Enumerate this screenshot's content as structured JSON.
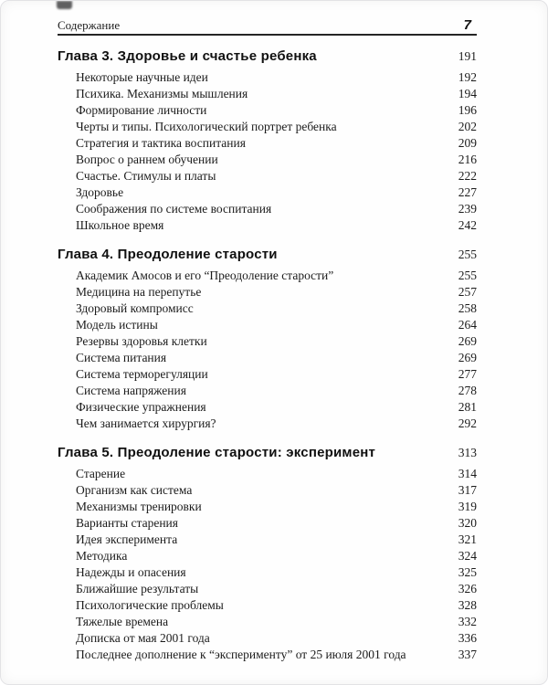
{
  "header": {
    "title": "Содержание",
    "page_number": "7"
  },
  "chapters": [
    {
      "title": "Глава 3. Здоровье и счастье ребенка",
      "page": "191",
      "entries": [
        {
          "title": "Некоторые научные идеи",
          "page": "192"
        },
        {
          "title": "Психика. Механизмы мышления",
          "page": "194"
        },
        {
          "title": "Формирование личности",
          "page": "196"
        },
        {
          "title": "Черты и типы. Психологический портрет ребенка",
          "page": "202"
        },
        {
          "title": "Стратегия и тактика воспитания",
          "page": "209"
        },
        {
          "title": "Вопрос о раннем обучении",
          "page": "216"
        },
        {
          "title": "Счастье. Стимулы и платы",
          "page": "222"
        },
        {
          "title": "Здоровье",
          "page": "227"
        },
        {
          "title": "Соображения по системе воспитания",
          "page": "239"
        },
        {
          "title": "Школьное время",
          "page": "242"
        }
      ]
    },
    {
      "title": "Глава 4. Преодоление старости",
      "page": "255",
      "entries": [
        {
          "title": "Академик Амосов и его “Преодоление старости”",
          "page": "255"
        },
        {
          "title": "Медицина на перепутье",
          "page": "257"
        },
        {
          "title": "Здоровый компромисс",
          "page": "258"
        },
        {
          "title": "Модель истины",
          "page": "264"
        },
        {
          "title": "Резервы здоровья клетки",
          "page": "269"
        },
        {
          "title": "Система питания",
          "page": "269"
        },
        {
          "title": "Система терморегуляции",
          "page": "277"
        },
        {
          "title": "Система напряжения",
          "page": "278"
        },
        {
          "title": "Физические упражнения",
          "page": "281"
        },
        {
          "title": "Чем занимается хирургия?",
          "page": "292"
        }
      ]
    },
    {
      "title": "Глава 5. Преодоление старости: эксперимент",
      "page": "313",
      "entries": [
        {
          "title": "Старение",
          "page": "314"
        },
        {
          "title": "Организм как система",
          "page": "317"
        },
        {
          "title": "Механизмы тренировки",
          "page": "319"
        },
        {
          "title": "Варианты старения",
          "page": "320"
        },
        {
          "title": "Идея эксперимента",
          "page": "321"
        },
        {
          "title": "Методика",
          "page": "324"
        },
        {
          "title": "Надежды и опасения",
          "page": "325"
        },
        {
          "title": "Ближайшие результаты",
          "page": "326"
        },
        {
          "title": "Психологические проблемы",
          "page": "328"
        },
        {
          "title": "Тяжелые времена",
          "page": "332"
        },
        {
          "title": "Дописка от мая 2001 года",
          "page": "336"
        },
        {
          "title": "Последнее дополнение к “эксперименту” от 25 июля 2001 года",
          "page": "337"
        }
      ]
    }
  ]
}
